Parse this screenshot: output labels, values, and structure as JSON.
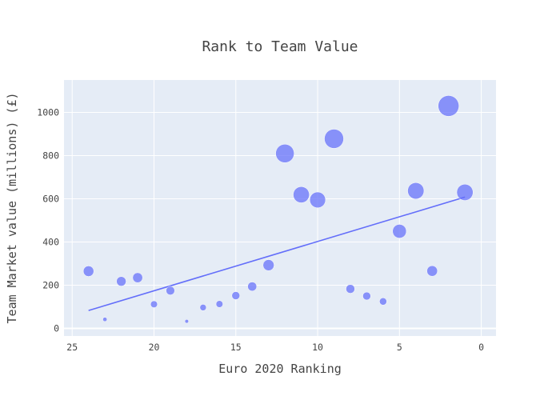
{
  "chart_data": {
    "type": "scatter",
    "title": "Rank to Team Value",
    "xlabel": "Euro 2020 Ranking",
    "ylabel": "Team Market value (millions) (£)",
    "x_reversed": true,
    "xlim": [
      25.5,
      -0.9
    ],
    "ylim": [
      -35,
      1150
    ],
    "x_ticks": [
      25,
      20,
      15,
      10,
      5,
      0
    ],
    "y_ticks": [
      0,
      200,
      400,
      600,
      800,
      1000
    ],
    "grid": true,
    "legend": "none",
    "colors": {
      "marker": "#636efa",
      "trendline": "#636efa",
      "plot_bg": "#e5ecf6",
      "grid": "#ffffff"
    },
    "points": [
      {
        "x": 24,
        "y": 265
      },
      {
        "x": 23,
        "y": 42
      },
      {
        "x": 22,
        "y": 218
      },
      {
        "x": 21,
        "y": 235
      },
      {
        "x": 20,
        "y": 112
      },
      {
        "x": 19,
        "y": 175
      },
      {
        "x": 18,
        "y": 33
      },
      {
        "x": 17,
        "y": 97
      },
      {
        "x": 16,
        "y": 113
      },
      {
        "x": 15,
        "y": 152
      },
      {
        "x": 14,
        "y": 194
      },
      {
        "x": 13,
        "y": 293
      },
      {
        "x": 12,
        "y": 810
      },
      {
        "x": 11,
        "y": 619
      },
      {
        "x": 10,
        "y": 595
      },
      {
        "x": 9,
        "y": 878
      },
      {
        "x": 8,
        "y": 183
      },
      {
        "x": 7,
        "y": 150
      },
      {
        "x": 6,
        "y": 125
      },
      {
        "x": 5,
        "y": 450
      },
      {
        "x": 4,
        "y": 637
      },
      {
        "x": 3,
        "y": 266
      },
      {
        "x": 2,
        "y": 1030
      },
      {
        "x": 1,
        "y": 630
      }
    ],
    "trendline": [
      {
        "x": 24,
        "y": 83
      },
      {
        "x": 1,
        "y": 608
      }
    ]
  }
}
